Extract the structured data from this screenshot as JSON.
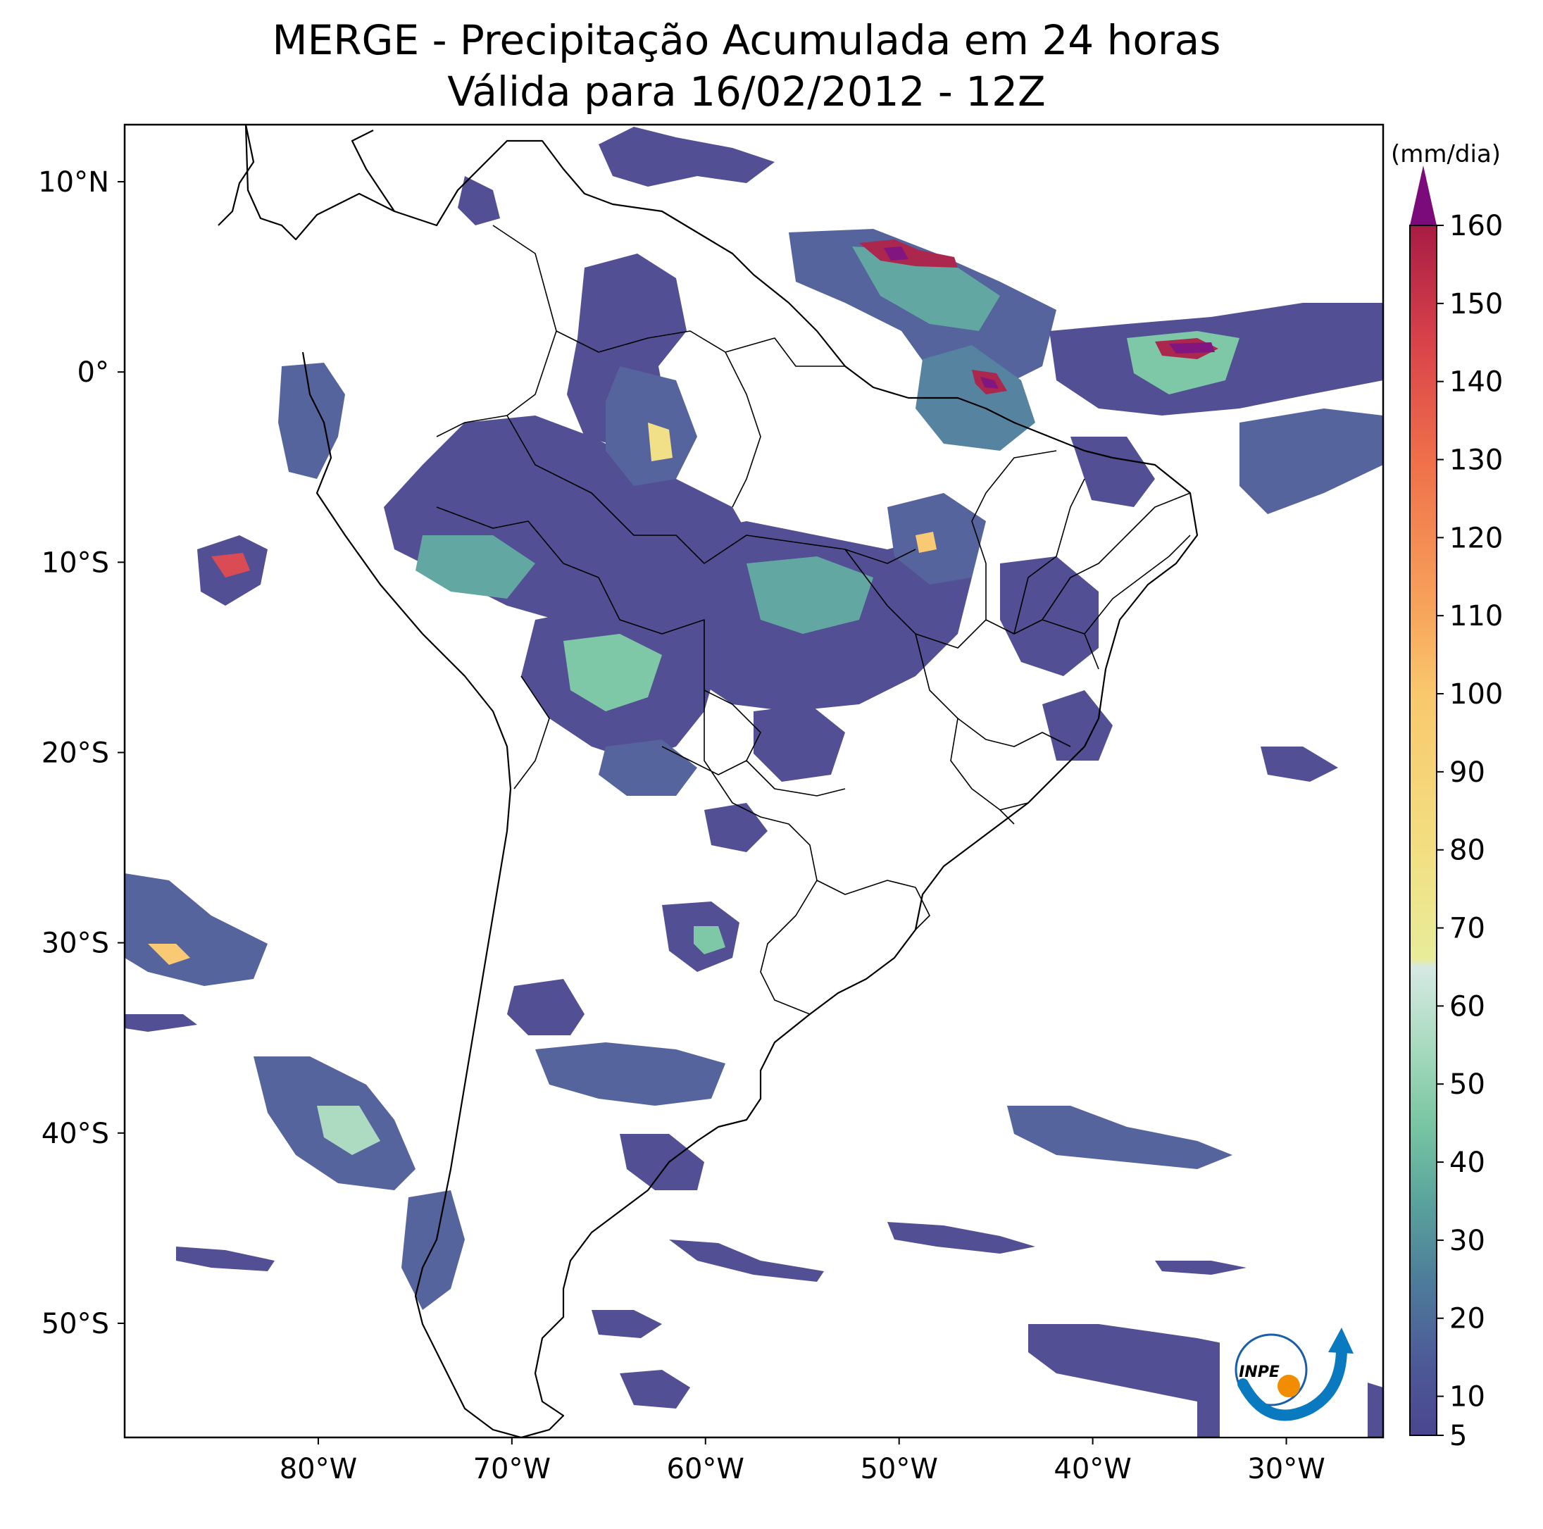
{
  "title": {
    "line1": "MERGE - Precipitação Acumulada em 24 horas",
    "line2": "Válida para 16/02/2012 - 12Z"
  },
  "map": {
    "projection": "PlateCarree",
    "lon_range": [
      -90,
      -25
    ],
    "lat_range": [
      -56,
      13
    ],
    "x_ticks": [
      {
        "lon": -80,
        "label": "80°W"
      },
      {
        "lon": -70,
        "label": "70°W"
      },
      {
        "lon": -60,
        "label": "60°W"
      },
      {
        "lon": -50,
        "label": "50°W"
      },
      {
        "lon": -40,
        "label": "40°W"
      },
      {
        "lon": -30,
        "label": "30°W"
      }
    ],
    "y_ticks": [
      {
        "lat": 10,
        "label": "10°N"
      },
      {
        "lat": 0,
        "label": "0°"
      },
      {
        "lat": -10,
        "label": "10°S"
      },
      {
        "lat": -20,
        "label": "20°S"
      },
      {
        "lat": -30,
        "label": "30°S"
      },
      {
        "lat": -40,
        "label": "40°S"
      },
      {
        "lat": -50,
        "label": "50°S"
      }
    ]
  },
  "colorbar": {
    "unit": "(mm/dia)",
    "min": 5,
    "max": 160,
    "extend": "max",
    "extend_color": "#7b0a7a",
    "ticks": [
      5,
      10,
      20,
      30,
      40,
      50,
      60,
      70,
      80,
      90,
      100,
      110,
      120,
      130,
      140,
      150,
      160
    ],
    "stops": [
      {
        "v": 5,
        "c": "#4a468f"
      },
      {
        "v": 15,
        "c": "#4d5c98"
      },
      {
        "v": 25,
        "c": "#4d7d9a"
      },
      {
        "v": 35,
        "c": "#5aa39c"
      },
      {
        "v": 45,
        "c": "#79c6a3"
      },
      {
        "v": 55,
        "c": "#a9dabf"
      },
      {
        "v": 65,
        "c": "#d5e9e3"
      },
      {
        "v": 66,
        "c": "#e8ec9a"
      },
      {
        "v": 80,
        "c": "#f2df82"
      },
      {
        "v": 100,
        "c": "#f9c86c"
      },
      {
        "v": 110,
        "c": "#f7a65c"
      },
      {
        "v": 130,
        "c": "#ef6f4a"
      },
      {
        "v": 145,
        "c": "#d8434a"
      },
      {
        "v": 160,
        "c": "#a81c44"
      }
    ]
  },
  "logo": {
    "text": "INPE",
    "ring_color": "#1b5ea8",
    "arrow_color": "#0a7ac0",
    "dot_color": "#f28c00"
  }
}
